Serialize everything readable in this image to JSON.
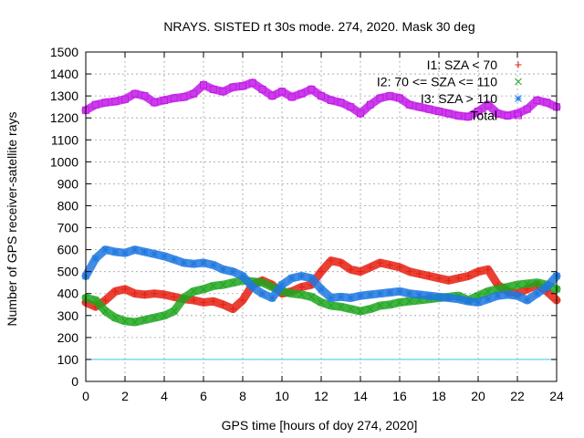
{
  "chart_data": {
    "type": "scatter",
    "title": "NRAYS. SISTED rt 30s mode. 274, 2020. Mask 30 deg",
    "xlabel": "GPS time [hours of doy 274, 2020]",
    "ylabel": "Number of GPS receiver-satellite rays",
    "xlim": [
      0,
      24
    ],
    "ylim": [
      0,
      1500
    ],
    "xticks": [
      0,
      2,
      4,
      6,
      8,
      10,
      12,
      14,
      16,
      18,
      20,
      22,
      24
    ],
    "yticks": [
      0,
      100,
      200,
      300,
      400,
      500,
      600,
      700,
      800,
      900,
      1000,
      1100,
      1200,
      1300,
      1400,
      1500
    ],
    "grid": true,
    "legend_position": "top-right",
    "threshold_line": {
      "value": 100,
      "color": "#3ec9e6"
    },
    "series": [
      {
        "name": "I1: SZA < 70",
        "marker": "+",
        "color": "#e51e10",
        "x": [
          0,
          0.5,
          1,
          1.5,
          2,
          2.5,
          3,
          3.5,
          4,
          4.5,
          5,
          5.5,
          6,
          6.5,
          7,
          7.5,
          8,
          8.5,
          9,
          9.5,
          10,
          10.5,
          11,
          11.5,
          12,
          12.5,
          13,
          13.5,
          14,
          14.5,
          15,
          15.5,
          16,
          16.5,
          17,
          17.5,
          18,
          18.5,
          19,
          19.5,
          20,
          20.5,
          21,
          21.5,
          22,
          22.5,
          23,
          23.5,
          24
        ],
        "y": [
          360,
          340,
          370,
          410,
          420,
          400,
          395,
          400,
          395,
          385,
          375,
          370,
          360,
          365,
          350,
          330,
          370,
          440,
          460,
          440,
          400,
          410,
          430,
          440,
          500,
          550,
          540,
          510,
          500,
          520,
          540,
          530,
          520,
          500,
          490,
          480,
          470,
          460,
          470,
          480,
          500,
          510,
          440,
          410,
          400,
          420,
          440,
          410,
          370
        ]
      },
      {
        "name": "I2: 70 <= SZA <= 110",
        "marker": "x",
        "color": "#1ea61e",
        "x": [
          0,
          0.5,
          1,
          1.5,
          2,
          2.5,
          3,
          3.5,
          4,
          4.5,
          5,
          5.5,
          6,
          6.5,
          7,
          7.5,
          8,
          8.5,
          9,
          9.5,
          10,
          10.5,
          11,
          11.5,
          12,
          12.5,
          13,
          13.5,
          14,
          14.5,
          15,
          15.5,
          16,
          16.5,
          17,
          17.5,
          18,
          18.5,
          19,
          19.5,
          20,
          20.5,
          21,
          21.5,
          22,
          22.5,
          23,
          23.5,
          24
        ],
        "y": [
          380,
          370,
          320,
          290,
          275,
          270,
          280,
          290,
          300,
          320,
          380,
          410,
          420,
          435,
          440,
          450,
          460,
          455,
          450,
          430,
          410,
          400,
          395,
          385,
          360,
          345,
          340,
          330,
          320,
          330,
          345,
          350,
          360,
          365,
          370,
          375,
          380,
          385,
          390,
          370,
          390,
          410,
          420,
          430,
          440,
          445,
          450,
          440,
          420
        ]
      },
      {
        "name": "I3: SZA > 110",
        "marker": "*",
        "color": "#1f78e0",
        "x": [
          0,
          0.5,
          1,
          1.5,
          2,
          2.5,
          3,
          3.5,
          4,
          4.5,
          5,
          5.5,
          6,
          6.5,
          7,
          7.5,
          8,
          8.5,
          9,
          9.5,
          10,
          10.5,
          11,
          11.5,
          12,
          12.5,
          13,
          13.5,
          14,
          14.5,
          15,
          15.5,
          16,
          16.5,
          17,
          17.5,
          18,
          18.5,
          19,
          19.5,
          20,
          20.5,
          21,
          21.5,
          22,
          22.5,
          23,
          23.5,
          24
        ],
        "y": [
          480,
          560,
          600,
          590,
          585,
          600,
          590,
          580,
          570,
          555,
          540,
          535,
          540,
          530,
          510,
          500,
          480,
          430,
          400,
          380,
          440,
          470,
          480,
          470,
          420,
          380,
          385,
          380,
          390,
          395,
          400,
          405,
          410,
          400,
          395,
          390,
          385,
          380,
          375,
          365,
          360,
          375,
          390,
          395,
          390,
          370,
          400,
          430,
          480
        ]
      },
      {
        "name": "Total",
        "marker": "square",
        "color": "#c21ae6",
        "x": [
          0,
          0.5,
          1,
          1.5,
          2,
          2.5,
          3,
          3.5,
          4,
          4.5,
          5,
          5.5,
          6,
          6.5,
          7,
          7.5,
          8,
          8.5,
          9,
          9.5,
          10,
          10.5,
          11,
          11.5,
          12,
          12.5,
          13,
          13.5,
          14,
          14.5,
          15,
          15.5,
          16,
          16.5,
          17,
          17.5,
          18,
          18.5,
          19,
          19.5,
          20,
          20.5,
          21,
          21.5,
          22,
          22.5,
          23,
          23.5,
          24
        ],
        "y": [
          1235,
          1260,
          1270,
          1275,
          1285,
          1310,
          1300,
          1270,
          1280,
          1290,
          1295,
          1310,
          1350,
          1330,
          1320,
          1340,
          1345,
          1360,
          1330,
          1300,
          1320,
          1295,
          1310,
          1330,
          1300,
          1280,
          1270,
          1250,
          1220,
          1260,
          1290,
          1300,
          1290,
          1260,
          1250,
          1240,
          1230,
          1220,
          1210,
          1205,
          1230,
          1260,
          1220,
          1210,
          1220,
          1240,
          1280,
          1270,
          1250
        ]
      }
    ]
  }
}
